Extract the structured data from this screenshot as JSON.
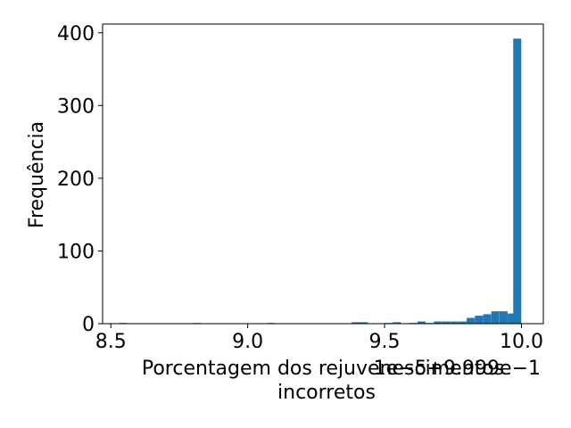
{
  "chart_data": {
    "type": "bar",
    "title": "",
    "xlabel_lines": [
      "Porcentagem dos rejuvenescimentos",
      "incorretos"
    ],
    "ylabel": "Frequência",
    "offset_text": "1e−5+9.999e−1",
    "x_ticks": [
      "8.5",
      "9.0",
      "9.5",
      "10.0"
    ],
    "y_ticks": [
      "0",
      "100",
      "200",
      "300",
      "400"
    ],
    "xlim": [
      8.47,
      10.08
    ],
    "ylim": [
      0,
      412
    ],
    "bar_color": "#1f77b4",
    "bin_width": 0.0295,
    "bins": [
      {
        "x": 8.53,
        "value": 1
      },
      {
        "x": 8.8,
        "value": 1
      },
      {
        "x": 9.07,
        "value": 1
      },
      {
        "x": 9.38,
        "value": 2
      },
      {
        "x": 9.41,
        "value": 2
      },
      {
        "x": 9.5,
        "value": 1
      },
      {
        "x": 9.53,
        "value": 2
      },
      {
        "x": 9.59,
        "value": 1
      },
      {
        "x": 9.62,
        "value": 3
      },
      {
        "x": 9.65,
        "value": 1
      },
      {
        "x": 9.68,
        "value": 3
      },
      {
        "x": 9.71,
        "value": 3
      },
      {
        "x": 9.74,
        "value": 3
      },
      {
        "x": 9.77,
        "value": 3
      },
      {
        "x": 9.8,
        "value": 8
      },
      {
        "x": 9.83,
        "value": 11
      },
      {
        "x": 9.86,
        "value": 13
      },
      {
        "x": 9.89,
        "value": 17
      },
      {
        "x": 9.92,
        "value": 17
      },
      {
        "x": 9.95,
        "value": 14
      },
      {
        "x": 9.97,
        "value": 392
      }
    ],
    "grid": false,
    "legend": "none"
  }
}
